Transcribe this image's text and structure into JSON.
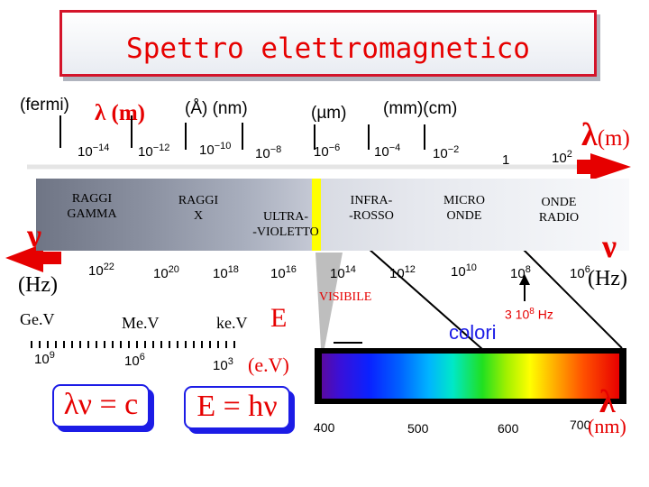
{
  "title": "Spettro elettromagnetico",
  "units_top": {
    "fermi": "(fermi)",
    "lambda_m": "λ (m)",
    "angstrom_nm": "(Å) (nm)",
    "micron": "(µm)",
    "mm_cm": "(mm)(cm)",
    "lambda_m_right": "(m)"
  },
  "lambda_symbol": "λ",
  "nu_symbol": "ν",
  "wavelength_ticks": [
    {
      "base": "10",
      "exp": "−14"
    },
    {
      "base": "10",
      "exp": "−12"
    },
    {
      "base": "10",
      "exp": "−10"
    },
    {
      "base": "10",
      "exp": "−8"
    },
    {
      "base": "10",
      "exp": "−6"
    },
    {
      "base": "10",
      "exp": "−4"
    },
    {
      "base": "10",
      "exp": "−2"
    },
    {
      "base": "1",
      "exp": ""
    },
    {
      "base": "10",
      "exp": "2"
    }
  ],
  "bands": {
    "gamma_line1": "RAGGI",
    "gamma_line2": "GAMMA",
    "x_line1": "RAGGI",
    "x_line2": "X",
    "uv_line1": "ULTRA-",
    "uv_line2": "-VIOLETTO",
    "ir_line1": "INFRA-",
    "ir_line2": "-ROSSO",
    "micro_line1": "MICRO",
    "micro_line2": "ONDE",
    "radio_line1": "ONDE",
    "radio_line2": "RADIO"
  },
  "frequency_unit": "(Hz)",
  "frequency_ticks": [
    {
      "base": "10",
      "exp": "22"
    },
    {
      "base": "10",
      "exp": "20"
    },
    {
      "base": "10",
      "exp": "18"
    },
    {
      "base": "10",
      "exp": "16"
    },
    {
      "base": "10",
      "exp": "14"
    },
    {
      "base": "10",
      "exp": "12"
    },
    {
      "base": "10",
      "exp": "10"
    },
    {
      "base": "10",
      "exp": "8"
    },
    {
      "base": "10",
      "exp": "6"
    }
  ],
  "visibile_label": "VISIBILE",
  "freq_note": {
    "prefix": "3 10",
    "exp": "8",
    "suffix": " Hz"
  },
  "colori_label": "colori",
  "energy_labels": {
    "gev": "Ge.V",
    "mev": "Me.V",
    "kev": "ke.V",
    "e": "E",
    "ev": "(e.V)"
  },
  "energy_ticks": [
    {
      "base": "10",
      "exp": "9"
    },
    {
      "base": "10",
      "exp": "6"
    },
    {
      "base": "10",
      "exp": "3"
    }
  ],
  "formula_1": "λν = c",
  "formula_2": "E = hν",
  "visible_axis": {
    "ticks": [
      "400",
      "500",
      "600",
      "700"
    ],
    "unit": "(nm)"
  },
  "colors": {
    "accent_red": "#e60000",
    "formula_blue": "#1c1ce6",
    "visible_marker": "#ffff00"
  }
}
